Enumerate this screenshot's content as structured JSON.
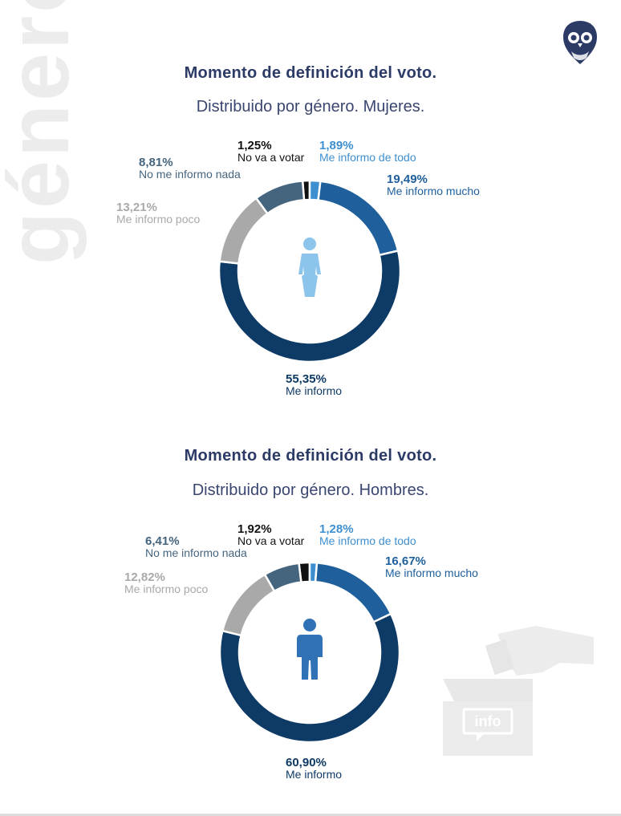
{
  "side_word": "género",
  "colors": {
    "title": "#2c3a66",
    "me_informo": "#0e3a66",
    "me_informo_mucho": "#1e5f9c",
    "me_informo_de_todo": "#3d8fd0",
    "no_va_a_votar": "#111111",
    "no_me_informo_nada": "#45647e",
    "me_informo_poco": "#a9a9a9",
    "woman_icon": "#8cc4ec",
    "man_icon": "#2f72b6"
  },
  "chart_data": [
    {
      "type": "donut",
      "title": "Momento de definición del voto.",
      "subtitle": "Distribuido por género. Mujeres.",
      "center_icon": "woman-icon",
      "slices": [
        {
          "key": "no_va_a_votar",
          "label": "No va a votar",
          "value": 1.25,
          "display": "1,25%"
        },
        {
          "key": "me_informo_de_todo",
          "label": "Me informo de todo",
          "value": 1.89,
          "display": "1,89%"
        },
        {
          "key": "me_informo_mucho",
          "label": "Me informo mucho",
          "value": 19.49,
          "display": "19,49%"
        },
        {
          "key": "me_informo",
          "label": "Me informo",
          "value": 55.35,
          "display": "55,35%"
        },
        {
          "key": "me_informo_poco",
          "label": "Me informo poco",
          "value": 13.21,
          "display": "13,21%"
        },
        {
          "key": "no_me_informo_nada",
          "label": "No me informo nada",
          "value": 8.81,
          "display": "8,81%"
        }
      ]
    },
    {
      "type": "donut",
      "title": "Momento de definición del voto.",
      "subtitle": "Distribuido por género. Hombres.",
      "center_icon": "man-icon",
      "slices": [
        {
          "key": "no_va_a_votar",
          "label": "No va a votar",
          "value": 1.92,
          "display": "1,92%"
        },
        {
          "key": "me_informo_de_todo",
          "label": "Me informo de todo",
          "value": 1.28,
          "display": "1,28%"
        },
        {
          "key": "me_informo_mucho",
          "label": "Me informo mucho",
          "value": 16.67,
          "display": "16,67%"
        },
        {
          "key": "me_informo",
          "label": "Me informo",
          "value": 60.9,
          "display": "60,90%"
        },
        {
          "key": "me_informo_poco",
          "label": "Me informo poco",
          "value": 12.82,
          "display": "12,82%"
        },
        {
          "key": "no_me_informo_nada",
          "label": "No me informo nada",
          "value": 6.41,
          "display": "6,41%"
        }
      ]
    }
  ],
  "ballot_box_label": "info"
}
